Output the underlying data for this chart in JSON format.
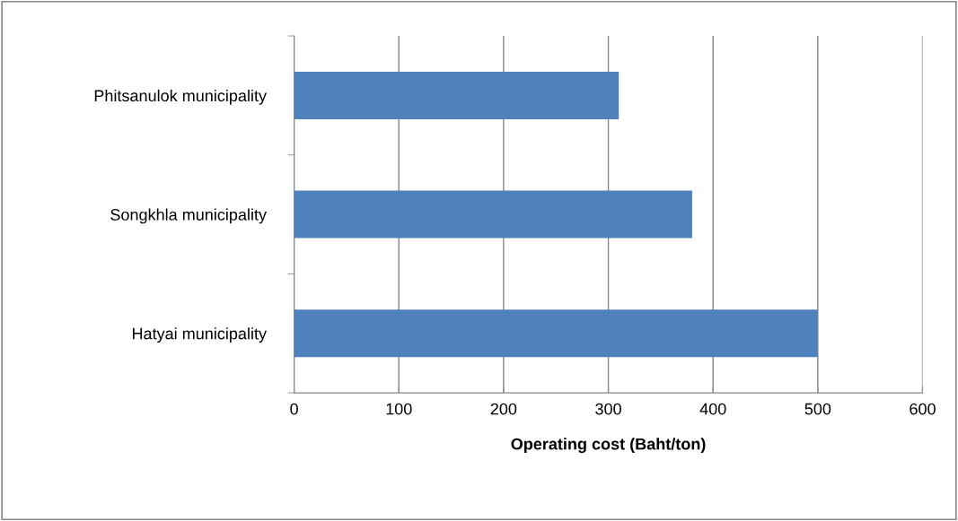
{
  "chart_data": {
    "type": "bar",
    "orientation": "horizontal",
    "xlabel": "Operating cost (Baht/ton)",
    "categories": [
      "Phitsanulok municipality",
      "Songkhla municipality",
      "Hatyai municipality"
    ],
    "values": [
      310,
      380,
      500
    ],
    "color": "#4f81bd",
    "xlim": [
      0,
      600
    ],
    "xticks": [
      0,
      100,
      200,
      300,
      400,
      500,
      600
    ],
    "grid": "x",
    "legend": false
  }
}
